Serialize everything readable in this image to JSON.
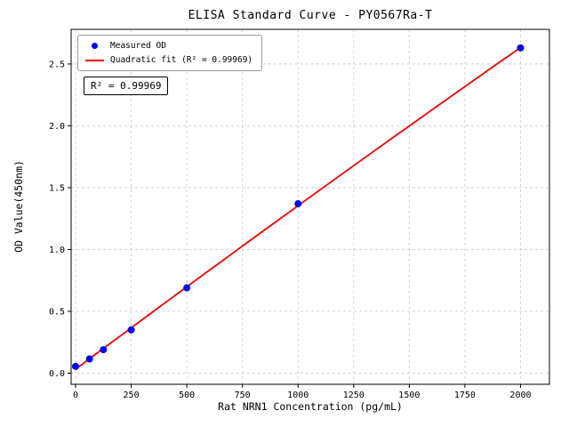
{
  "legend": {
    "measured": "Measured OD",
    "fit": "Quadratic fit (R² = 0.99969)"
  },
  "annotation": "R² = 0.99969",
  "colors": {
    "point": "#0000ee",
    "line": "#ee0000",
    "grid": "#c9c9c9",
    "spine": "#000000"
  },
  "chart_data": {
    "type": "scatter",
    "title": "ELISA Standard Curve - PY0567Ra-T",
    "xlabel": "Rat NRN1 Concentration (pg/mL)",
    "ylabel": "OD Value(450nm)",
    "xlim": [
      -20,
      2130
    ],
    "ylim": [
      -0.09,
      2.78
    ],
    "xticks": [
      0,
      250,
      500,
      750,
      1000,
      1250,
      1500,
      1750,
      2000
    ],
    "xtick_labels": [
      "0",
      "250",
      "500",
      "750",
      "1000",
      "1250",
      "1500",
      "1750",
      "2000"
    ],
    "yticks": [
      0.0,
      0.5,
      1.0,
      1.5,
      2.0,
      2.5
    ],
    "ytick_labels": [
      "0.0",
      "0.5",
      "1.0",
      "1.5",
      "2.0",
      "2.5"
    ],
    "grid": true,
    "grid_style": "dashed",
    "legend_position": "upper left",
    "series": [
      {
        "name": "Measured OD",
        "type": "scatter",
        "color": "#0000ee",
        "x": [
          0,
          62.5,
          125,
          250,
          500,
          1000,
          2000
        ],
        "y": [
          0.055,
          0.115,
          0.19,
          0.35,
          0.69,
          1.37,
          2.63
        ]
      },
      {
        "name": "Quadratic fit (R² = 0.99969)",
        "type": "line",
        "color": "#ee0000",
        "fit_model": "quadratic",
        "fit_range": [
          0,
          2000
        ],
        "r_squared": 0.99969
      }
    ]
  }
}
